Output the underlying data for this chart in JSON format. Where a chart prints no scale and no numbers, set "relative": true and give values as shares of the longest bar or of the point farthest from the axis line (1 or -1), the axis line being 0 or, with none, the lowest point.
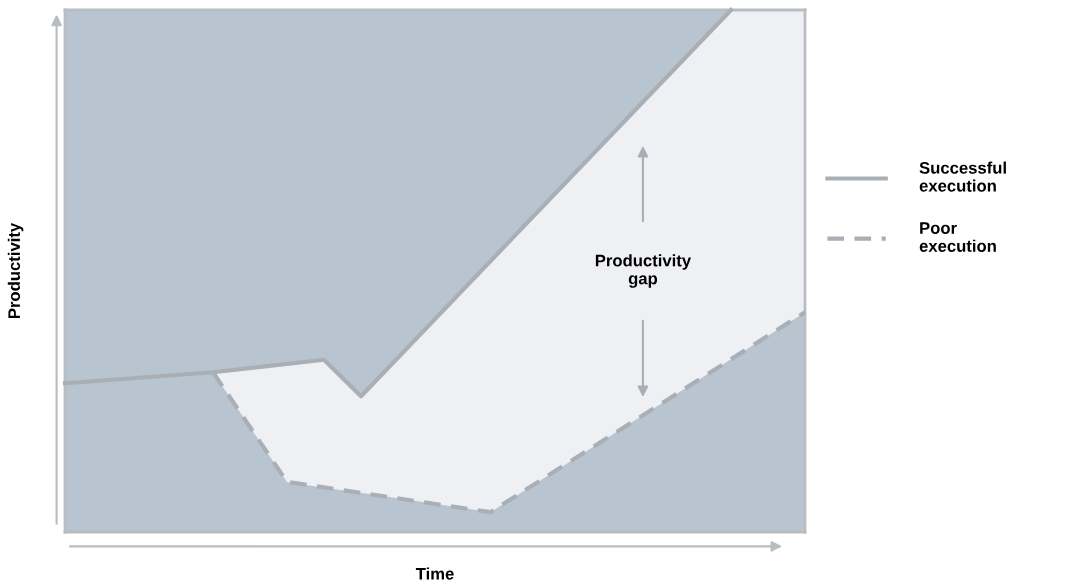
{
  "chart_data": {
    "type": "line",
    "relative": true,
    "xlabel": "Time",
    "ylabel": "Productivity",
    "legend": "right",
    "marker": "none",
    "categories": [
      null,
      null,
      null,
      null,
      null,
      null,
      null,
      null,
      null,
      null,
      null,
      null,
      null,
      null,
      null,
      null,
      null,
      null,
      null,
      null,
      null,
      null,
      null,
      null,
      null,
      null,
      null,
      null,
      null,
      null,
      null,
      null,
      null,
      null,
      null,
      null,
      null,
      null,
      null,
      null,
      null
    ],
    "series": [
      {
        "name": "Successful execution",
        "color": "#a9afb5",
        "line_style": "solid",
        "values": [
          0.285,
          null,
          null,
          null,
          null,
          null,
          null,
          null,
          0.306,
          null,
          null,
          null,
          null,
          null,
          0.33,
          null,
          0.26,
          null,
          null,
          null,
          null,
          null,
          null,
          null,
          null,
          null,
          null,
          null,
          null,
          null,
          null,
          null,
          null,
          null,
          null,
          null,
          1.0,
          null,
          null,
          null,
          null
        ]
      },
      {
        "name": "Poor execution",
        "color": "#a9afb5",
        "line_style": "dashed",
        "values": [
          null,
          null,
          null,
          null,
          null,
          null,
          null,
          null,
          0.306,
          null,
          null,
          null,
          0.096,
          null,
          null,
          null,
          null,
          null,
          null,
          null,
          null,
          null,
          null,
          0.038,
          null,
          null,
          null,
          null,
          null,
          null,
          null,
          null,
          null,
          null,
          null,
          null,
          null,
          null,
          null,
          null,
          0.421
        ],
        "lower": [
          null,
          null,
          null,
          null,
          null,
          null,
          null,
          null,
          0.306,
          null,
          null,
          null,
          0.096,
          null,
          0.085,
          null,
          0.075,
          null,
          null,
          null,
          null,
          null,
          null,
          0.038,
          null,
          null,
          null,
          null,
          null,
          null,
          null,
          null,
          null,
          null,
          null,
          null,
          0.331,
          null,
          null,
          null,
          0.421
        ],
        "upper": [
          null,
          null,
          null,
          null,
          null,
          null,
          null,
          null,
          0.306,
          null,
          null,
          null,
          0.322,
          null,
          0.33,
          null,
          0.26,
          null,
          null,
          null,
          null,
          null,
          null,
          0.519,
          null,
          null,
          null,
          null,
          null,
          null,
          null,
          null,
          null,
          null,
          null,
          null,
          1.0,
          null,
          null,
          null,
          1.0
        ]
      }
    ],
    "annotations": [
      "Productivity gap"
    ]
  }
}
